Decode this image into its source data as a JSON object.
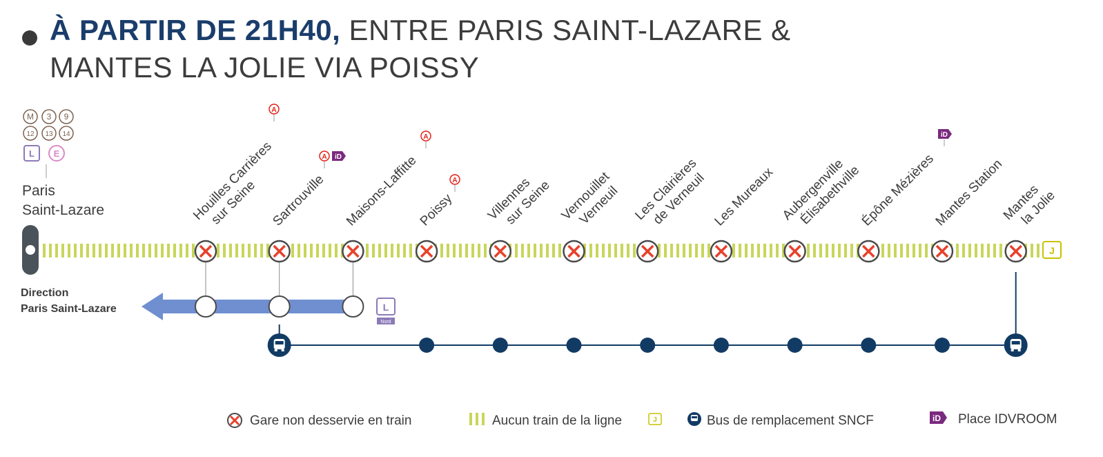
{
  "title": {
    "bold_part": "À PARTIR DE 21H40,",
    "rest_line1": " ENTRE PARIS SAINT-LAZARE &",
    "line2": "MANTES LA JOLIE VIA POISSY"
  },
  "origin": {
    "name_line1": "Paris",
    "name_line2": "Saint-Lazare",
    "connections": [
      "M",
      "3",
      "9",
      "12",
      "13",
      "14"
    ],
    "lines": [
      "L",
      "E"
    ]
  },
  "direction": {
    "line1": "Direction",
    "line2": "Paris Saint-Lazare",
    "line_badge": "L",
    "line_badge_sub": "Nord"
  },
  "stations": [
    {
      "name1": "Houilles Carrières",
      "name2": "sur Seine",
      "badges": [
        "A"
      ],
      "branch": true,
      "bus": "none"
    },
    {
      "name1": "Sartrouville",
      "name2": "",
      "badges": [
        "A",
        "iD"
      ],
      "branch": true,
      "bus": "terminal"
    },
    {
      "name1": "Maisons-Laffitte",
      "name2": "",
      "badges": [
        "A"
      ],
      "branch": true,
      "bus": "none"
    },
    {
      "name1": "Poissy",
      "name2": "",
      "badges": [
        "A"
      ],
      "branch": false,
      "bus": "stop"
    },
    {
      "name1": "Villennes",
      "name2": "sur Seine",
      "badges": [],
      "branch": false,
      "bus": "stop"
    },
    {
      "name1": "Vernouillet",
      "name2": "Verneuil",
      "badges": [],
      "branch": false,
      "bus": "stop"
    },
    {
      "name1": "Les Clairières",
      "name2": "de Verneuil",
      "badges": [],
      "branch": false,
      "bus": "stop"
    },
    {
      "name1": "Les Mureaux",
      "name2": "",
      "badges": [],
      "branch": false,
      "bus": "stop"
    },
    {
      "name1": "Aubergenville",
      "name2": "Élisabethville",
      "badges": [],
      "branch": false,
      "bus": "stop"
    },
    {
      "name1": "Épône Mézières",
      "name2": "",
      "badges": [
        "iD"
      ],
      "branch": false,
      "bus": "stop"
    },
    {
      "name1": "Mantes Station",
      "name2": "",
      "badges": [],
      "branch": false,
      "bus": "stop"
    },
    {
      "name1": "Mantes",
      "name2": "la Jolie",
      "badges": [],
      "branch": false,
      "bus": "terminal"
    }
  ],
  "end_line_badge": "J",
  "legend": {
    "closed": "Gare non desservie en train",
    "no_train": "Aucun train de la ligne",
    "no_train_badge": "J",
    "bus": "Bus de remplacement SNCF",
    "idvroom": "Place IDVROOM",
    "idvroom_badge": "iD"
  },
  "colors": {
    "title_blue": "#1a3d6b",
    "navy": "#123b64",
    "red_cross": "#e8402a",
    "green_line": "#c8d65a",
    "rer_red": "#e2231a",
    "idvroom_purple": "#7b2a7f",
    "arrow_blue": "#6f8fd0",
    "line_l": "#8c7ab8",
    "line_e": "#d98ac7",
    "line_j": "#c8c200",
    "metro_brown": "#7d6250"
  }
}
